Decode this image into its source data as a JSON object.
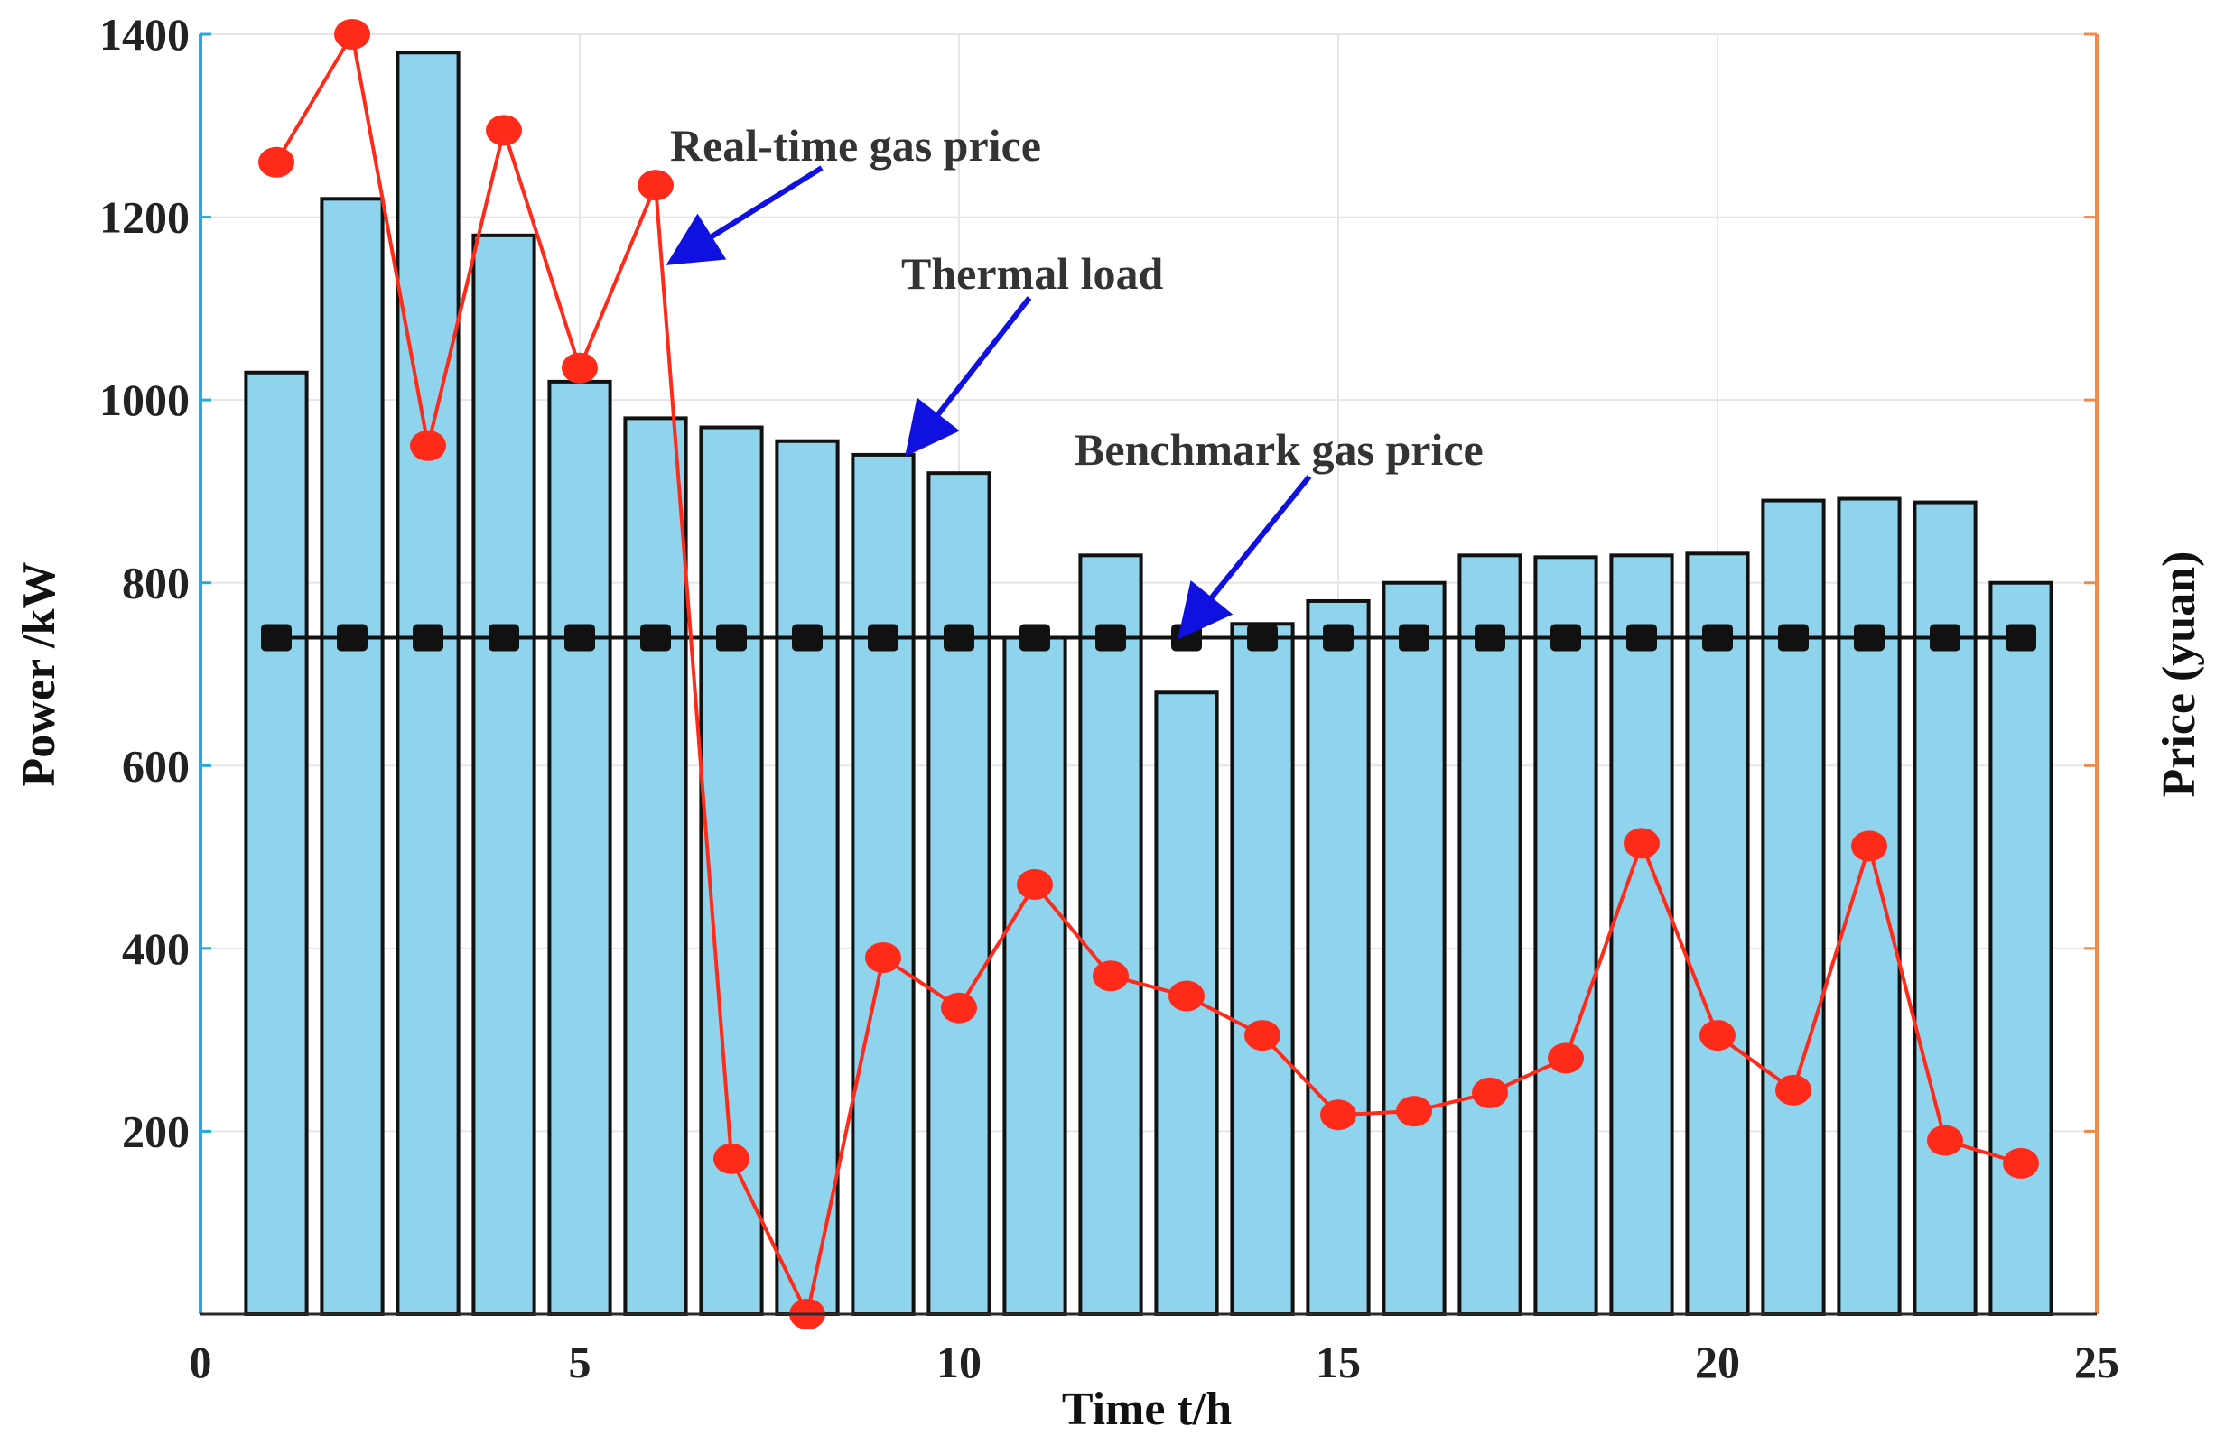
{
  "chart_data": {
    "type": "bar",
    "xlabel": "Time t/h",
    "ylabel": "Power /kW",
    "y2label": "Price (yuan)",
    "xlim": [
      0,
      25
    ],
    "ylim": [
      0,
      1400
    ],
    "y2lim": [
      0,
      1400
    ],
    "xticks": [
      "0",
      "5",
      "10",
      "15",
      "20",
      "25"
    ],
    "yticks": [
      "200",
      "400",
      "600",
      "800",
      "1000",
      "1200",
      "1400"
    ],
    "grid": true,
    "series": [
      {
        "kind": "bar",
        "color": "#8fd3ec",
        "x": [
          1,
          2,
          3,
          4,
          5,
          6,
          7,
          8,
          9,
          10,
          11,
          12,
          13,
          14,
          15,
          16,
          17,
          18,
          19,
          20,
          21,
          22,
          23,
          24
        ],
        "values": [
          1030,
          1220,
          1380,
          1180,
          1020,
          980,
          970,
          955,
          940,
          920,
          740,
          830,
          680,
          755,
          780,
          800,
          830,
          828,
          830,
          832,
          890,
          892,
          888,
          800
        ]
      },
      {
        "kind": "line",
        "color": "#ff2a1a",
        "x": [
          1,
          2,
          3,
          4,
          5,
          6,
          7,
          8,
          9,
          10,
          11,
          12,
          13,
          14,
          15,
          16,
          17,
          18,
          19,
          20,
          21,
          22,
          23,
          24
        ],
        "values": [
          1260,
          1400,
          950,
          1295,
          1035,
          1235,
          170,
          0,
          390,
          335,
          470,
          370,
          348,
          305,
          218,
          222,
          242,
          280,
          515,
          305,
          245,
          512,
          190,
          165
        ]
      },
      {
        "kind": "line",
        "color": "#111111",
        "x": [
          1,
          2,
          3,
          4,
          5,
          6,
          7,
          8,
          9,
          10,
          11,
          12,
          13,
          14,
          15,
          16,
          17,
          18,
          19,
          20,
          21,
          22,
          23,
          24
        ],
        "values": [
          740,
          740,
          740,
          740,
          740,
          740,
          740,
          740,
          740,
          740,
          740,
          740,
          740,
          740,
          740,
          740,
          740,
          740,
          740,
          740,
          740,
          740,
          740,
          740
        ]
      }
    ],
    "annotations": [
      {
        "text": "Real-time gas price",
        "target": [
          6.2,
          1145
        ]
      },
      {
        "text": "Thermal load",
        "target": [
          9.3,
          940
        ]
      },
      {
        "text": "Benchmark gas price",
        "target": [
          12.9,
          740
        ]
      }
    ]
  },
  "colors": {
    "bar_fill": "#8fd3ec",
    "bar_stroke": "#111111",
    "price_line": "#ff2a1a",
    "benchmark_line": "#111111",
    "arrow": "#1010e0",
    "left_axis": "#29a8e0",
    "right_axis": "#f08a4a"
  }
}
